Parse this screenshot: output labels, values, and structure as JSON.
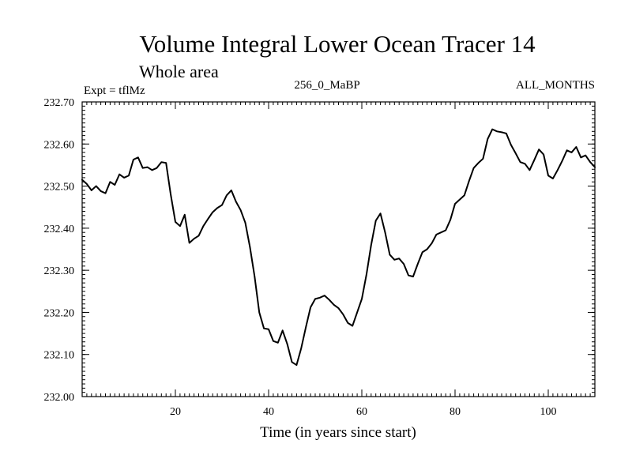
{
  "chart_data": {
    "type": "line",
    "title": "Volume Integral Lower Ocean Tracer 14",
    "subtitle": "Whole area",
    "annotation_left": "Expt = tflMz",
    "annotation_center": "256_0_MaBP",
    "annotation_right": "ALL_MONTHS",
    "xlabel": "Time (in years since start)",
    "ylabel": "",
    "xlim": [
      0,
      110
    ],
    "ylim": [
      232.0,
      232.7
    ],
    "x_ticks": [
      20,
      40,
      60,
      80,
      100
    ],
    "x_tick_labels": [
      "20",
      "40",
      "60",
      "80",
      "100"
    ],
    "y_ticks": [
      232.0,
      232.1,
      232.2,
      232.3,
      232.4,
      232.5,
      232.6,
      232.7
    ],
    "y_tick_labels": [
      "232.00",
      "232.10",
      "232.20",
      "232.30",
      "232.40",
      "232.50",
      "232.60",
      "232.70"
    ],
    "grid": false,
    "line_color": "#000000",
    "series": [
      {
        "name": "Tracer 14",
        "x": [
          0,
          1,
          2,
          3,
          4,
          5,
          6,
          7,
          8,
          9,
          10,
          11,
          12,
          13,
          14,
          15,
          16,
          17,
          18,
          19,
          20,
          21,
          22,
          23,
          24,
          25,
          26,
          27,
          28,
          29,
          30,
          31,
          32,
          33,
          34,
          35,
          36,
          37,
          38,
          39,
          40,
          41,
          42,
          43,
          44,
          45,
          46,
          47,
          48,
          49,
          50,
          51,
          52,
          53,
          54,
          55,
          56,
          57,
          58,
          59,
          60,
          61,
          62,
          63,
          64,
          65,
          66,
          67,
          68,
          69,
          70,
          71,
          72,
          73,
          74,
          75,
          76,
          77,
          78,
          79,
          80,
          81,
          82,
          83,
          84,
          85,
          86,
          87,
          88,
          89,
          90,
          91,
          92,
          93,
          94,
          95,
          96,
          97,
          98,
          99,
          100,
          101,
          102,
          103,
          104,
          105,
          106,
          107,
          108,
          109,
          110
        ],
        "values": [
          232.515,
          232.505,
          232.49,
          232.5,
          232.488,
          232.483,
          232.51,
          232.503,
          232.528,
          232.52,
          232.525,
          232.563,
          232.568,
          232.543,
          232.545,
          232.538,
          232.543,
          232.557,
          232.555,
          232.48,
          232.415,
          232.405,
          232.432,
          232.365,
          232.375,
          232.382,
          232.405,
          232.422,
          232.438,
          232.448,
          232.455,
          232.478,
          232.49,
          232.463,
          232.443,
          232.413,
          232.355,
          232.285,
          232.2,
          232.162,
          232.16,
          232.132,
          232.128,
          232.157,
          232.125,
          232.082,
          232.075,
          232.115,
          232.165,
          232.212,
          232.232,
          232.235,
          232.24,
          232.23,
          232.218,
          232.21,
          232.195,
          232.175,
          232.168,
          232.2,
          232.232,
          232.29,
          232.36,
          232.418,
          232.435,
          232.39,
          232.337,
          232.325,
          232.328,
          232.315,
          232.288,
          232.285,
          232.315,
          232.343,
          232.35,
          232.364,
          232.385,
          232.39,
          232.395,
          232.42,
          232.458,
          232.468,
          232.478,
          232.512,
          232.543,
          232.555,
          232.565,
          232.612,
          232.635,
          232.63,
          232.628,
          232.625,
          232.598,
          232.578,
          232.557,
          232.553,
          232.538,
          232.562,
          232.587,
          232.575,
          232.525,
          232.518,
          232.538,
          232.56,
          232.585,
          232.58,
          232.593,
          232.568,
          232.573,
          232.557,
          232.545
        ]
      }
    ]
  }
}
